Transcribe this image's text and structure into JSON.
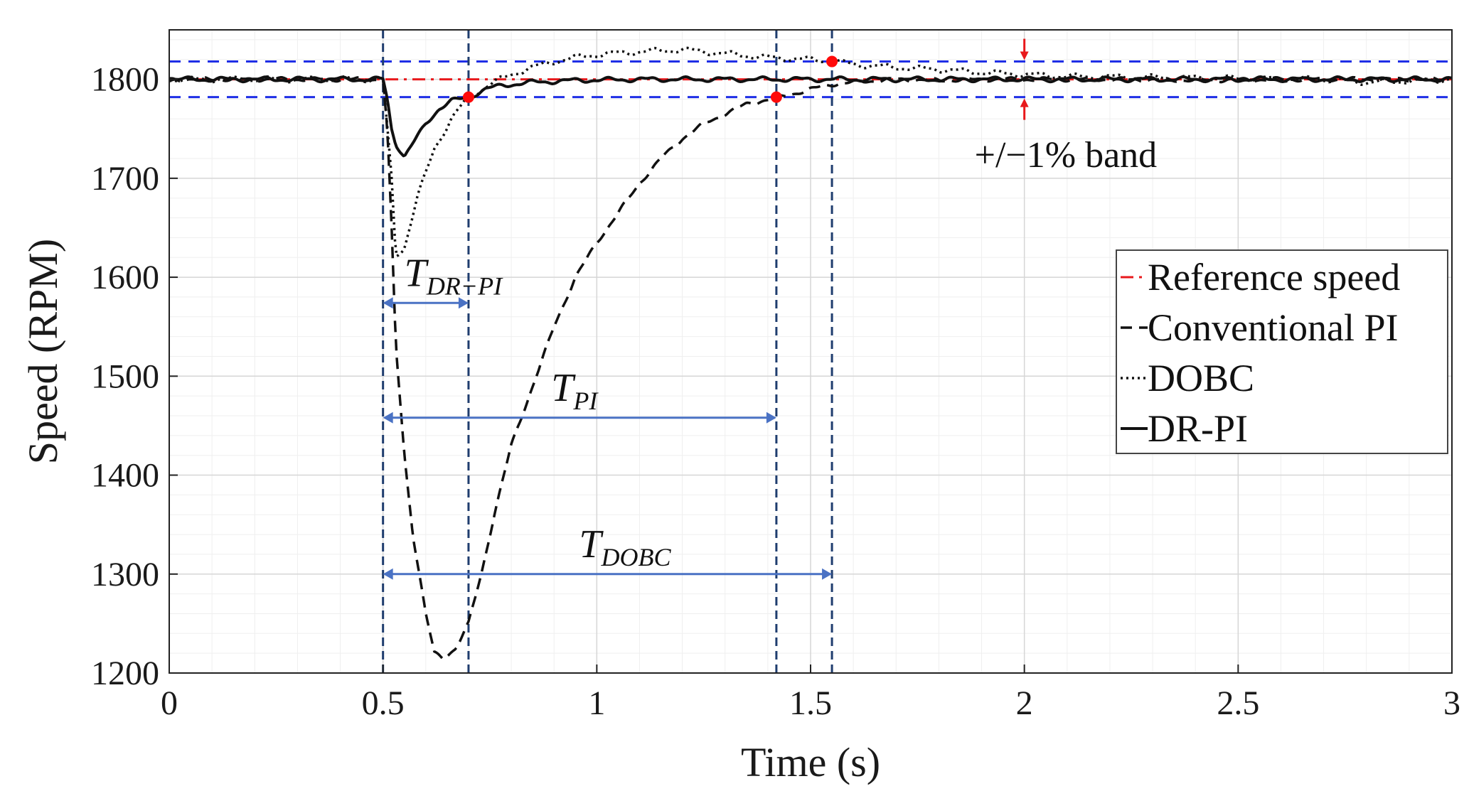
{
  "chart_data": {
    "type": "line",
    "title": "",
    "xlabel": "Time (s)",
    "ylabel": "Speed (RPM)",
    "xlim": [
      0,
      3
    ],
    "ylim": [
      1200,
      1850
    ],
    "xticks": [
      0,
      0.5,
      1,
      1.5,
      2,
      2.5,
      3
    ],
    "xtick_labels": [
      "0",
      "0.5",
      "1",
      "1.5",
      "2",
      "2.5",
      "3"
    ],
    "yticks": [
      1200,
      1300,
      1400,
      1500,
      1600,
      1700,
      1800
    ],
    "ytick_labels": [
      "1200",
      "1300",
      "1400",
      "1500",
      "1600",
      "1700",
      "1800"
    ],
    "grid": true,
    "legend_position": "right",
    "legend": [
      {
        "label": "Reference speed",
        "style": "dashdot",
        "color": "#e8191c"
      },
      {
        "label": "Conventional PI",
        "style": "dashed",
        "color": "#111111"
      },
      {
        "label": "DOBC",
        "style": "dotted",
        "color": "#111111"
      },
      {
        "label": "DR-PI",
        "style": "solid",
        "color": "#111111"
      }
    ],
    "band": {
      "label": "+/−1% band",
      "upper": 1818,
      "lower": 1782,
      "color": "#1f2fe6"
    },
    "series": [
      {
        "name": "Reference speed",
        "x": [
          0,
          3
        ],
        "y": [
          1800,
          1800
        ]
      },
      {
        "name": "Conventional PI",
        "x": [
          0,
          0.5,
          0.51,
          0.52,
          0.53,
          0.55,
          0.57,
          0.6,
          0.62,
          0.64,
          0.67,
          0.7,
          0.73,
          0.76,
          0.8,
          0.85,
          0.9,
          0.95,
          1.0,
          1.05,
          1.1,
          1.15,
          1.2,
          1.25,
          1.3,
          1.35,
          1.43,
          1.5,
          1.55,
          1.6,
          1.7,
          1.8,
          1.9,
          2.0,
          2.2,
          2.4,
          2.6,
          2.8,
          3.0
        ],
        "y": [
          1800,
          1800,
          1750,
          1650,
          1530,
          1420,
          1340,
          1260,
          1220,
          1215,
          1225,
          1250,
          1300,
          1360,
          1430,
          1490,
          1550,
          1600,
          1635,
          1665,
          1695,
          1720,
          1740,
          1755,
          1765,
          1775,
          1782,
          1790,
          1795,
          1797,
          1800,
          1799,
          1800,
          1800,
          1800,
          1799,
          1800,
          1800,
          1800
        ]
      },
      {
        "name": "DOBC",
        "x": [
          0,
          0.5,
          0.52,
          0.53,
          0.55,
          0.58,
          0.62,
          0.66,
          0.7,
          0.75,
          0.8,
          0.85,
          0.9,
          0.95,
          1.0,
          1.1,
          1.2,
          1.3,
          1.4,
          1.5,
          1.56,
          1.6,
          1.7,
          1.8,
          1.9,
          2.0,
          2.1,
          2.3,
          2.5,
          2.7,
          2.8,
          3.0
        ],
        "y": [
          1800,
          1800,
          1700,
          1622,
          1630,
          1680,
          1730,
          1760,
          1782,
          1795,
          1805,
          1812,
          1818,
          1822,
          1825,
          1828,
          1830,
          1826,
          1822,
          1820,
          1818,
          1815,
          1812,
          1810,
          1807,
          1805,
          1803,
          1802,
          1801,
          1800,
          1797,
          1800
        ]
      },
      {
        "name": "DR-PI",
        "x": [
          0,
          0.5,
          0.51,
          0.52,
          0.53,
          0.55,
          0.57,
          0.6,
          0.63,
          0.66,
          0.7,
          0.74,
          0.78,
          0.85,
          0.95,
          1.1,
          1.3,
          1.5,
          1.7,
          2.0,
          2.3,
          2.6,
          3.0
        ],
        "y": [
          1800,
          1800,
          1780,
          1750,
          1735,
          1722,
          1735,
          1755,
          1770,
          1778,
          1782,
          1790,
          1794,
          1797,
          1799,
          1800,
          1800,
          1800,
          1800,
          1800,
          1800,
          1800,
          1800
        ]
      }
    ],
    "vertical_lines": [
      0.5,
      0.7,
      1.42,
      1.55
    ],
    "settle_points": [
      {
        "name": "DR-PI",
        "x": 0.7,
        "y": 1782
      },
      {
        "name": "Conventional PI",
        "x": 1.42,
        "y": 1782
      },
      {
        "name": "DOBC",
        "x": 1.55,
        "y": 1818
      }
    ],
    "annotations": [
      {
        "main": "T",
        "sub": "DR−PI",
        "from": 0.5,
        "to": 0.7,
        "y": 1574
      },
      {
        "main": "T",
        "sub": "PI",
        "from": 0.5,
        "to": 1.42,
        "y": 1458
      },
      {
        "main": "T",
        "sub": "DOBC",
        "from": 0.5,
        "to": 1.55,
        "y": 1300
      }
    ]
  }
}
